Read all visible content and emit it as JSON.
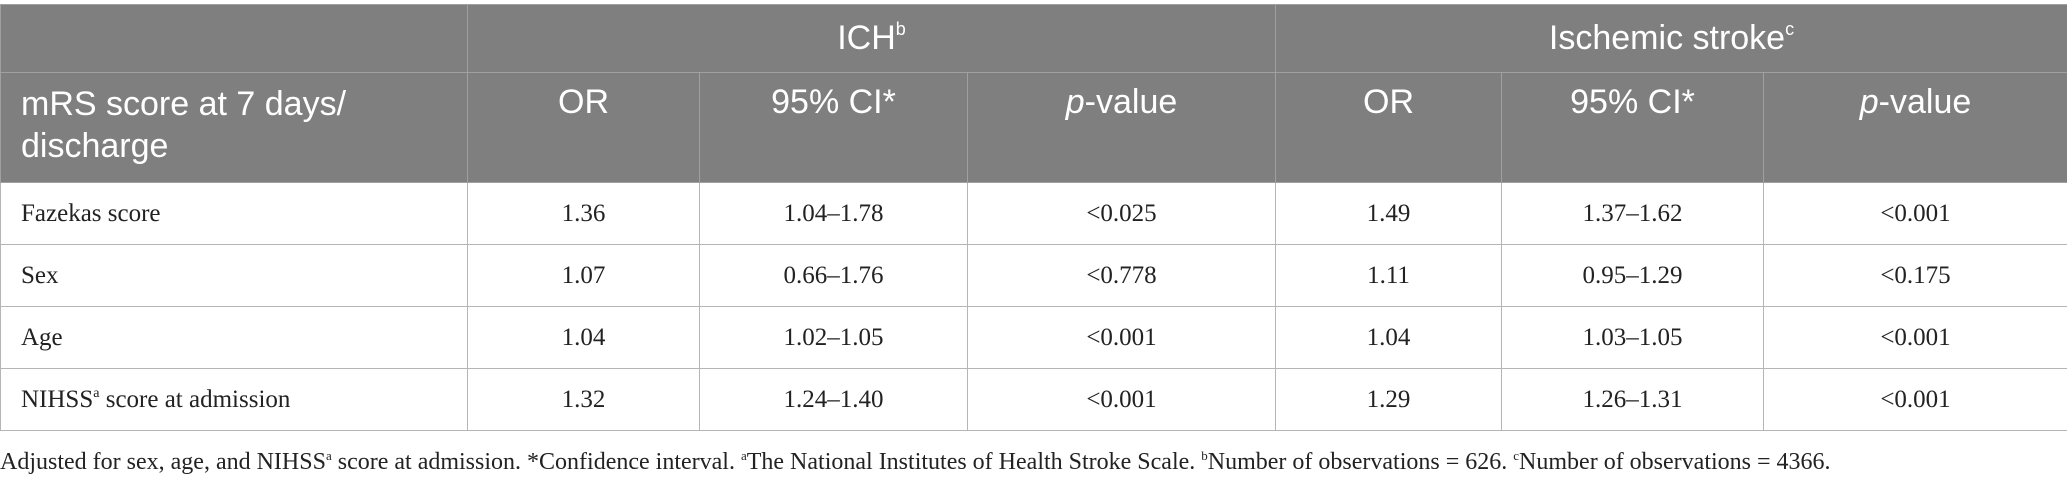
{
  "header": {
    "group1": "ICH",
    "group1_sup": "b",
    "group2": "Ischemic stroke",
    "group2_sup": "c",
    "first_col": "mRS score at 7 days/ discharge",
    "col_or": "OR",
    "col_ci": "95% CI*",
    "col_p_italic": "p",
    "col_p_rest": "-value"
  },
  "rows": [
    {
      "label": "Fazekas score",
      "ich_or": "1.36",
      "ich_ci": "1.04–1.78",
      "ich_p": "<0.025",
      "is_or": "1.49",
      "is_ci": "1.37–1.62",
      "is_p": "<0.001"
    },
    {
      "label": "Sex",
      "ich_or": "1.07",
      "ich_ci": "0.66–1.76",
      "ich_p": "<0.778",
      "is_or": "1.11",
      "is_ci": "0.95–1.29",
      "is_p": "<0.175"
    },
    {
      "label": "Age",
      "ich_or": "1.04",
      "ich_ci": "1.02–1.05",
      "ich_p": "<0.001",
      "is_or": "1.04",
      "is_ci": "1.03–1.05",
      "is_p": "<0.001"
    },
    {
      "label_pre": "NIHSS",
      "label_sup": "a",
      "label_post": " score at admission",
      "ich_or": "1.32",
      "ich_ci": "1.24–1.40",
      "ich_p": "<0.001",
      "is_or": "1.29",
      "is_ci": "1.26–1.31",
      "is_p": "<0.001"
    }
  ],
  "footnote": {
    "p1": "Adjusted for sex, age, and NIHSS",
    "p1_sup": "a",
    "p2": " score at admission. *Confidence interval. ",
    "p2_sup": "a",
    "p3": "The National Institutes of Health Stroke Scale. ",
    "p3_sup": "b",
    "p4": "Number of observations = 626. ",
    "p4_sup": "c",
    "p5": "Number of observations = 4366."
  }
}
